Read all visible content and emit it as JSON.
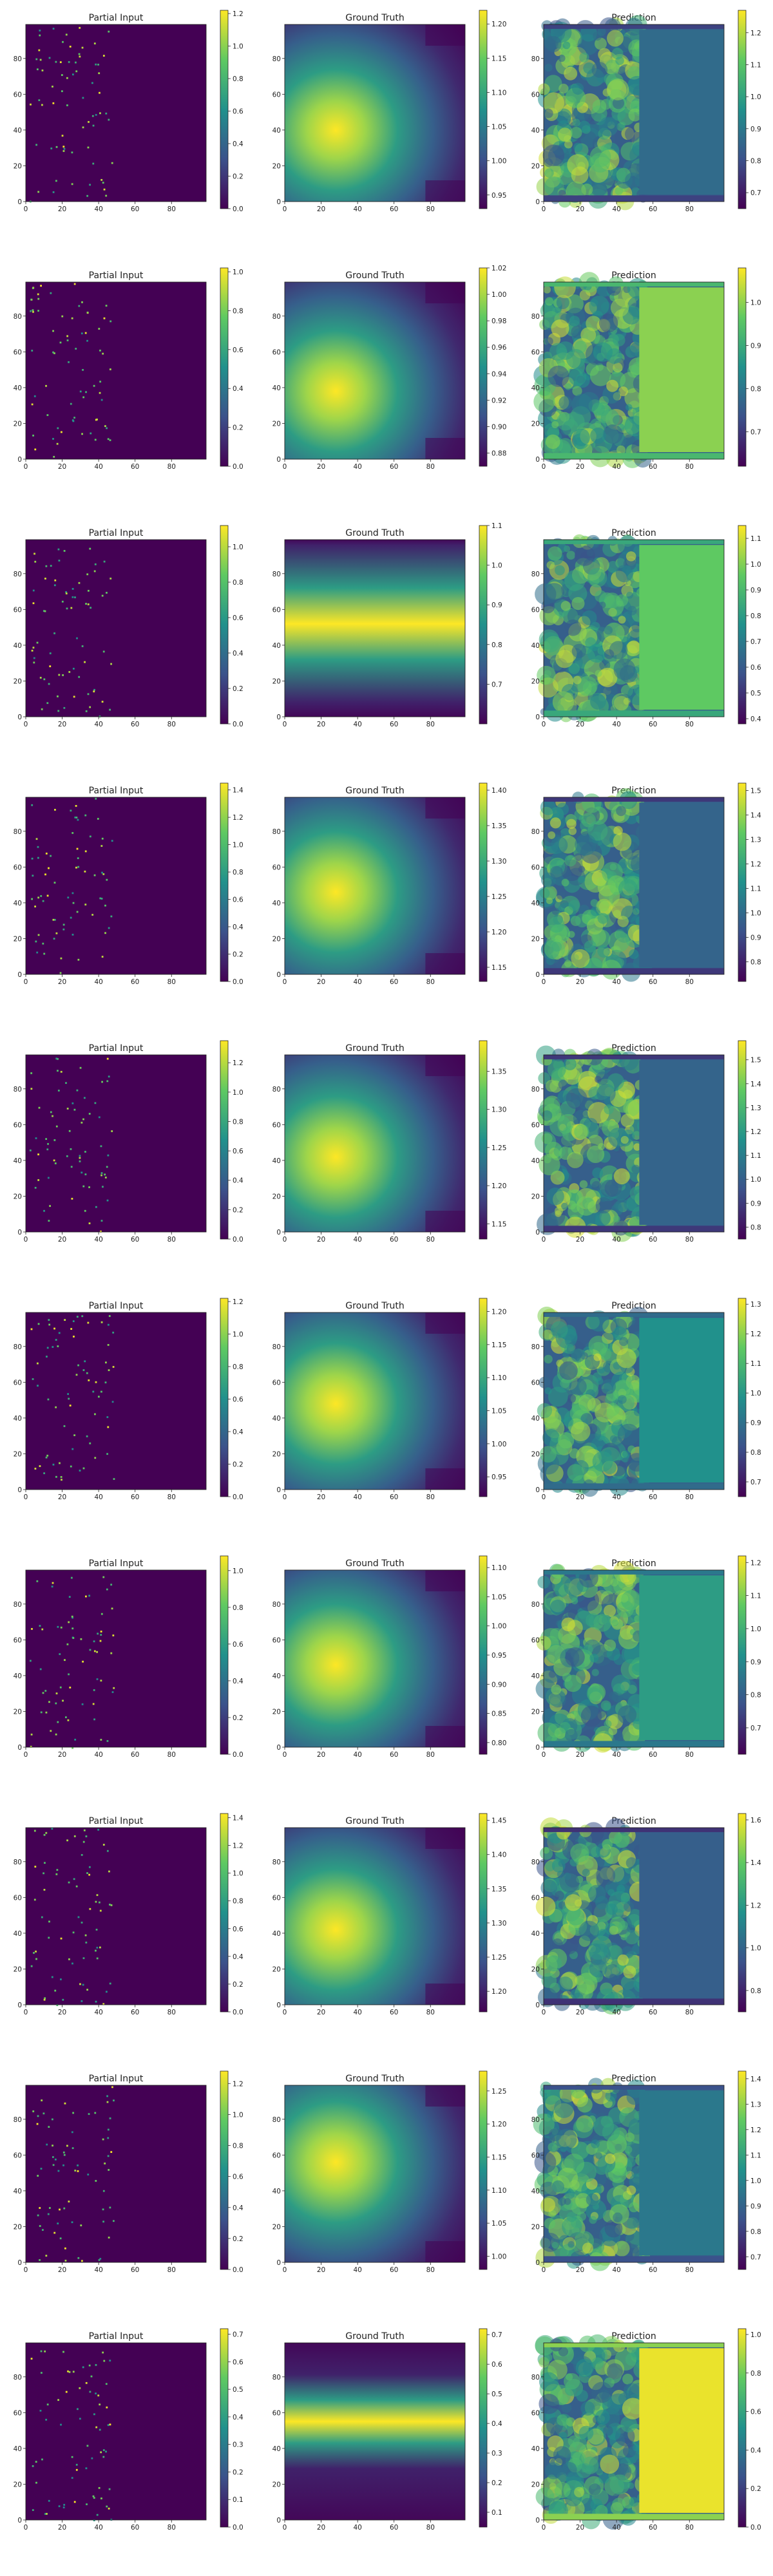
{
  "colormap": [
    "#440154",
    "#3b528b",
    "#21918c",
    "#5ec962",
    "#fde725"
  ],
  "panel_titles": [
    "Partial Input",
    "Ground Truth",
    "Prediction"
  ],
  "axis_ticks": {
    "x": [
      "0",
      "20",
      "40",
      "60",
      "80"
    ],
    "y": [
      "0",
      "20",
      "40",
      "60",
      "80"
    ]
  },
  "chart_data": {
    "type": "heatmap",
    "grid": "10 rows x 3 columns of image panels with colorbars",
    "xlim": [
      0,
      99
    ],
    "ylim": [
      0,
      99
    ],
    "rows": [
      {
        "cbars": [
          {
            "ticks": [
              "0.0",
              "0.2",
              "0.4",
              "0.6",
              "0.8",
              "1.0",
              "1.2"
            ],
            "range": [
              0,
              1.22
            ]
          },
          {
            "ticks": [
              "0.95",
              "1.00",
              "1.05",
              "1.10",
              "1.15",
              "1.20"
            ],
            "range": [
              0.93,
              1.22
            ]
          },
          {
            "ticks": [
              "0.7",
              "0.8",
              "0.9",
              "1.0",
              "1.1",
              "1.2"
            ],
            "range": [
              0.65,
              1.27
            ]
          }
        ],
        "gt": {
          "cx": 28,
          "cy": 40,
          "sx": 24,
          "sy": 32,
          "band": false
        },
        "pred_right": 0.35
      },
      {
        "cbars": [
          {
            "ticks": [
              "0.0",
              "0.2",
              "0.4",
              "0.6",
              "0.8",
              "1.0"
            ],
            "range": [
              0,
              1.02
            ]
          },
          {
            "ticks": [
              "0.88",
              "0.90",
              "0.92",
              "0.94",
              "0.96",
              "0.98",
              "1.00",
              "1.02"
            ],
            "range": [
              0.87,
              1.02
            ]
          },
          {
            "ticks": [
              "0.7",
              "0.8",
              "0.9",
              "1.0"
            ],
            "range": [
              0.62,
              1.08
            ]
          }
        ],
        "gt": {
          "cx": 28,
          "cy": 38,
          "sx": 26,
          "sy": 30,
          "band": false
        },
        "pred_right": 0.82
      },
      {
        "cbars": [
          {
            "ticks": [
              "0.0",
              "0.2",
              "0.4",
              "0.6",
              "0.8",
              "1.0"
            ],
            "range": [
              0,
              1.12
            ]
          },
          {
            "ticks": [
              "0.7",
              "0.8",
              "0.9",
              "1.0",
              "1.1"
            ],
            "range": [
              0.6,
              1.1
            ]
          },
          {
            "ticks": [
              "0.4",
              "0.5",
              "0.6",
              "0.7",
              "0.8",
              "0.9",
              "1.0",
              "1.1"
            ],
            "range": [
              0.38,
              1.15
            ]
          }
        ],
        "gt": {
          "cx": 30,
          "cy": 52,
          "sx": 60,
          "sy": 20,
          "band": true
        },
        "pred_right": 0.75
      },
      {
        "cbars": [
          {
            "ticks": [
              "0.0",
              "0.2",
              "0.4",
              "0.6",
              "0.8",
              "1.0",
              "1.2",
              "1.4"
            ],
            "range": [
              0,
              1.45
            ]
          },
          {
            "ticks": [
              "1.15",
              "1.20",
              "1.25",
              "1.30",
              "1.35",
              "1.40"
            ],
            "range": [
              1.13,
              1.41
            ]
          },
          {
            "ticks": [
              "0.8",
              "0.9",
              "1.0",
              "1.1",
              "1.2",
              "1.3",
              "1.4",
              "1.5"
            ],
            "range": [
              0.72,
              1.53
            ]
          }
        ],
        "gt": {
          "cx": 28,
          "cy": 46,
          "sx": 26,
          "sy": 30,
          "band": false
        },
        "pred_right": 0.32
      },
      {
        "cbars": [
          {
            "ticks": [
              "0.0",
              "0.2",
              "0.4",
              "0.6",
              "0.8",
              "1.0",
              "1.2"
            ],
            "range": [
              0,
              1.35
            ]
          },
          {
            "ticks": [
              "1.15",
              "1.20",
              "1.25",
              "1.30",
              "1.35"
            ],
            "range": [
              1.13,
              1.39
            ]
          },
          {
            "ticks": [
              "0.8",
              "0.9",
              "1.0",
              "1.1",
              "1.2",
              "1.3",
              "1.4",
              "1.5"
            ],
            "range": [
              0.75,
              1.58
            ]
          }
        ],
        "gt": {
          "cx": 28,
          "cy": 42,
          "sx": 24,
          "sy": 32,
          "band": false
        },
        "pred_right": 0.32
      },
      {
        "cbars": [
          {
            "ticks": [
              "0.0",
              "0.2",
              "0.4",
              "0.6",
              "0.8",
              "1.0",
              "1.2"
            ],
            "range": [
              0,
              1.22
            ]
          },
          {
            "ticks": [
              "0.95",
              "1.00",
              "1.05",
              "1.10",
              "1.15",
              "1.20"
            ],
            "range": [
              0.92,
              1.22
            ]
          },
          {
            "ticks": [
              "0.7",
              "0.8",
              "0.9",
              "1.0",
              "1.1",
              "1.2",
              "1.3"
            ],
            "range": [
              0.65,
              1.32
            ]
          }
        ],
        "gt": {
          "cx": 28,
          "cy": 48,
          "sx": 28,
          "sy": 28,
          "band": false
        },
        "pred_right": 0.5
      },
      {
        "cbars": [
          {
            "ticks": [
              "0.0",
              "0.2",
              "0.4",
              "0.6",
              "0.8",
              "1.0"
            ],
            "range": [
              0,
              1.08
            ]
          },
          {
            "ticks": [
              "0.80",
              "0.85",
              "0.90",
              "0.95",
              "1.00",
              "1.05",
              "1.10"
            ],
            "range": [
              0.78,
              1.12
            ]
          },
          {
            "ticks": [
              "0.7",
              "0.8",
              "0.9",
              "1.0",
              "1.1",
              "1.2"
            ],
            "range": [
              0.62,
              1.22
            ]
          }
        ],
        "gt": {
          "cx": 28,
          "cy": 46,
          "sx": 22,
          "sy": 34,
          "band": false
        },
        "pred_right": 0.55
      },
      {
        "cbars": [
          {
            "ticks": [
              "0.0",
              "0.2",
              "0.4",
              "0.6",
              "0.8",
              "1.0",
              "1.2",
              "1.4"
            ],
            "range": [
              0,
              1.43
            ]
          },
          {
            "ticks": [
              "1.20",
              "1.25",
              "1.30",
              "1.35",
              "1.40",
              "1.45"
            ],
            "range": [
              1.17,
              1.46
            ]
          },
          {
            "ticks": [
              "0.8",
              "1.0",
              "1.2",
              "1.4",
              "1.6"
            ],
            "range": [
              0.7,
              1.63
            ]
          }
        ],
        "gt": {
          "cx": 28,
          "cy": 42,
          "sx": 26,
          "sy": 30,
          "band": false
        },
        "pred_right": 0.3
      },
      {
        "cbars": [
          {
            "ticks": [
              "0.0",
              "0.2",
              "0.4",
              "0.6",
              "0.8",
              "1.0",
              "1.2"
            ],
            "range": [
              0,
              1.28
            ]
          },
          {
            "ticks": [
              "1.00",
              "1.05",
              "1.10",
              "1.15",
              "1.20",
              "1.25"
            ],
            "range": [
              0.98,
              1.28
            ]
          },
          {
            "ticks": [
              "0.7",
              "0.8",
              "0.9",
              "1.0",
              "1.1",
              "1.2",
              "1.3",
              "1.4"
            ],
            "range": [
              0.65,
              1.43
            ]
          }
        ],
        "gt": {
          "cx": 28,
          "cy": 56,
          "sx": 28,
          "sy": 28,
          "band": false
        },
        "pred_right": 0.4
      },
      {
        "cbars": [
          {
            "ticks": [
              "0.0",
              "0.1",
              "0.2",
              "0.3",
              "0.4",
              "0.5",
              "0.6",
              "0.7"
            ],
            "range": [
              0,
              0.72
            ]
          },
          {
            "ticks": [
              "0.1",
              "0.2",
              "0.3",
              "0.4",
              "0.5",
              "0.6",
              "0.7"
            ],
            "range": [
              0.05,
              0.72
            ]
          },
          {
            "ticks": [
              "0.0",
              "0.2",
              "0.4",
              "0.6",
              "0.8",
              "1.0"
            ],
            "range": [
              0,
              1.03
            ]
          }
        ],
        "gt": {
          "cx": 50,
          "cy": 55,
          "sx": 400,
          "sy": 12,
          "band": true
        },
        "pred_right": 0.97
      }
    ]
  }
}
